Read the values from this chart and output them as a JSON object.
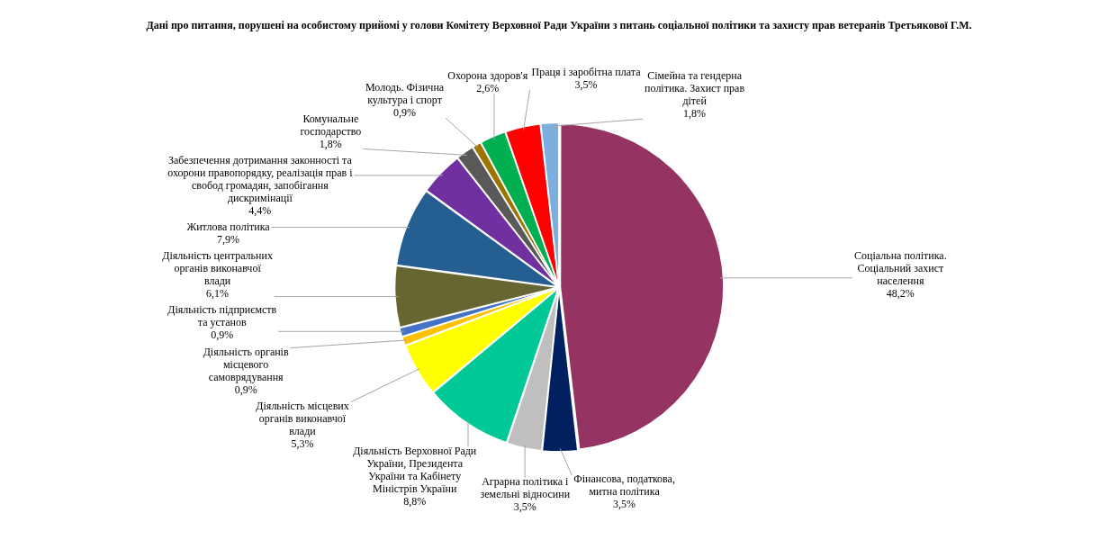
{
  "chart_data": {
    "type": "pie",
    "title": "Дані про питання, порушені на особистому прийомі у голови Комітету Верховної Ради України з питань соціальної політики та захисту прав ветеранів Третьякової Г.М.",
    "categories": [
      "Соціальна політика. Соціальний захист населення",
      "Фінансова, податкова, митна політика",
      "Аграрна політика і земельні відносини",
      "Діяльність Верховної Ради України, Президента України та Кабінету Міністрів України",
      "Діяльність місцевих органів виконавчої влади",
      "Діяльність органів місцевого самоврядування",
      "Діяльність підприємств та установ",
      "Діяльність центральних органів виконавчої влади",
      "Житлова політика",
      "Забезпечення дотримання законності та охорони правопорядку, реалізація прав і свобод громадян, запобігання дискримінації",
      "Комунальне господарство",
      "Молодь. Фізична культура і спорт",
      "Охорона здоров'я",
      "Праця і заробітна плата",
      "Сімейна та гендерна політика. Захист прав дітей"
    ],
    "values": [
      48.2,
      3.5,
      3.5,
      8.8,
      5.3,
      0.9,
      0.9,
      6.1,
      7.9,
      4.4,
      1.8,
      0.9,
      2.6,
      3.5,
      1.8
    ],
    "colors": [
      "#953462",
      "#002060",
      "#bfbfbf",
      "#00c896",
      "#ffff00",
      "#ffc000",
      "#4472c4",
      "#666633",
      "#255e91",
      "#7030a0",
      "#595959",
      "#9c7500",
      "#00b050",
      "#ff0000",
      "#7cafdd"
    ],
    "value_labels": [
      "48,2%",
      "3,5%",
      "3,5%",
      "8,8%",
      "5,3%",
      "0,9%",
      "0,9%",
      "6,1%",
      "7,9%",
      "4,4%",
      "1,8%",
      "0,9%",
      "2,6%",
      "3,5%",
      "1,8%"
    ]
  }
}
